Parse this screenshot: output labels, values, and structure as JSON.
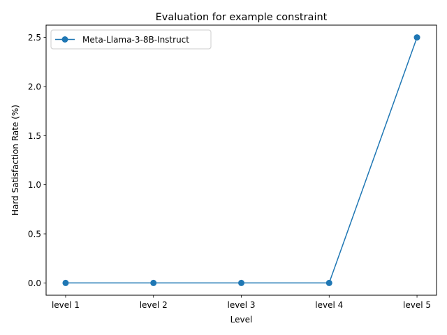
{
  "chart_data": {
    "type": "line",
    "title": "Evaluation for example constraint",
    "xlabel": "Level",
    "ylabel": "Hard Satisfaction Rate (%)",
    "categories": [
      "level 1",
      "level 2",
      "level 3",
      "level 4",
      "level 5"
    ],
    "series": [
      {
        "name": "Meta-Llama-3-8B-Instruct",
        "values": [
          0.0,
          0.0,
          0.0,
          0.0,
          2.5
        ],
        "color": "#1f77b4",
        "marker": "circle"
      }
    ],
    "ylim": [
      -0.125,
      2.625
    ],
    "yticks": [
      0.0,
      0.5,
      1.0,
      1.5,
      2.0,
      2.5
    ],
    "ytick_labels": [
      "0.0",
      "0.5",
      "1.0",
      "1.5",
      "2.0",
      "2.5"
    ],
    "grid": false,
    "legend": "top-left"
  }
}
